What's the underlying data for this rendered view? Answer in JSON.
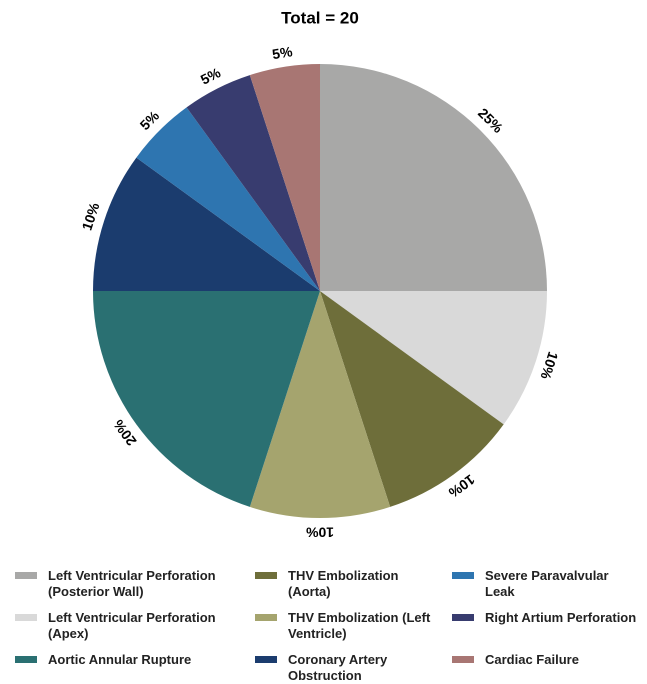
{
  "chart_data": {
    "type": "pie",
    "title": "Total = 20",
    "series": [
      {
        "name": "Left Ventricular Perforation (Posterior Wall)",
        "color": "#a8a8a7",
        "values": [
          25
        ],
        "value_labels": [
          "25%"
        ]
      },
      {
        "name": "Left Ventricular Perforation (Apex)",
        "color": "#d9d9d9",
        "values": [
          10
        ],
        "value_labels": [
          "10%"
        ]
      },
      {
        "name": "THV Embolization (Aorta)",
        "color": "#6e6e3a",
        "values": [
          10
        ],
        "value_labels": [
          "10%"
        ]
      },
      {
        "name": "THV Embolization (Left Ventricle)",
        "color": "#a5a46e",
        "values": [
          10
        ],
        "value_labels": [
          "10%"
        ]
      },
      {
        "name": "Aortic Annular Rupture",
        "color": "#2a7072",
        "values": [
          20
        ],
        "value_labels": [
          "20%"
        ]
      },
      {
        "name": "Coronary Artery Obstruction",
        "color": "#1b3c6e",
        "values": [
          10
        ],
        "value_labels": [
          "10%"
        ]
      },
      {
        "name": "Severe Paravalvular Leak",
        "color": "#2e75b0",
        "values": [
          5
        ],
        "value_labels": [
          "5%"
        ]
      },
      {
        "name": "Right Artium Perforation",
        "color": "#383c6f",
        "values": [
          5
        ],
        "value_labels": [
          "5%"
        ]
      },
      {
        "name": "Cardiac Failure",
        "color": "#a87673",
        "values": [
          5
        ],
        "value_labels": [
          "5%"
        ]
      }
    ]
  }
}
